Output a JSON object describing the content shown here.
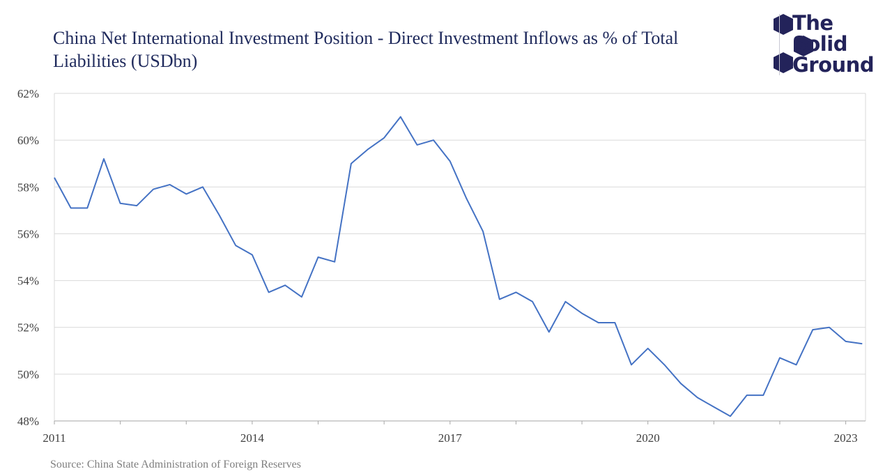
{
  "title": "China Net International Investment Position - Direct Investment Inflows as % of Total Liabilities (USDbn)",
  "source": "Source: China State Administration of Foreign Reserves",
  "logo": {
    "lines": [
      "The",
      "Solid",
      "Ground"
    ],
    "color": "#23235a"
  },
  "chart_data": {
    "type": "line",
    "title": "China Net International Investment Position - Direct Investment Inflows as % of Total Liabilities (USDbn)",
    "xlabel": "",
    "ylabel": "",
    "ylim": [
      48,
      62
    ],
    "yticks": [
      48,
      50,
      52,
      54,
      56,
      58,
      60,
      62
    ],
    "ytick_labels": [
      "48%",
      "50%",
      "52%",
      "54%",
      "56%",
      "58%",
      "60%",
      "62%"
    ],
    "xtick_labels": [
      "2011",
      "2014",
      "2017",
      "2020",
      "2023"
    ],
    "xtick_years": [
      2011,
      2014,
      2017,
      2020,
      2023
    ],
    "xlim": [
      2011,
      2023.3
    ],
    "grid": "horizontal",
    "legend": "none",
    "line_color": "#4472c4",
    "series": [
      {
        "x": [
          2011.0,
          2011.25,
          2011.5,
          2011.75,
          2012.0,
          2012.25,
          2012.5,
          2012.75,
          2013.0,
          2013.25,
          2013.5,
          2013.75,
          2014.0,
          2014.25,
          2014.5,
          2014.75,
          2015.0,
          2015.25,
          2015.5,
          2015.75,
          2016.0,
          2016.25,
          2016.5,
          2016.75,
          2017.0,
          2017.25,
          2017.5,
          2017.75,
          2018.0,
          2018.25,
          2018.5,
          2018.75,
          2019.0,
          2019.25,
          2019.5,
          2019.75,
          2020.0,
          2020.25,
          2020.5,
          2020.75,
          2021.0,
          2021.25,
          2021.5,
          2021.75,
          2022.0,
          2022.25,
          2022.5,
          2022.75,
          2023.0,
          2023.25
        ],
        "values": [
          58.4,
          57.1,
          57.1,
          59.2,
          57.3,
          57.2,
          57.9,
          58.1,
          57.7,
          58.0,
          56.8,
          55.5,
          55.1,
          53.5,
          53.8,
          53.3,
          55.0,
          54.8,
          59.0,
          59.6,
          60.1,
          61.0,
          59.8,
          60.0,
          59.1,
          57.5,
          56.1,
          53.2,
          53.5,
          53.1,
          51.8,
          53.1,
          52.6,
          52.2,
          52.2,
          50.4,
          51.1,
          50.4,
          49.6,
          49.0,
          48.6,
          48.2,
          49.1,
          49.1,
          50.7,
          50.4,
          51.9,
          52.0,
          51.4,
          51.3
        ]
      }
    ]
  }
}
